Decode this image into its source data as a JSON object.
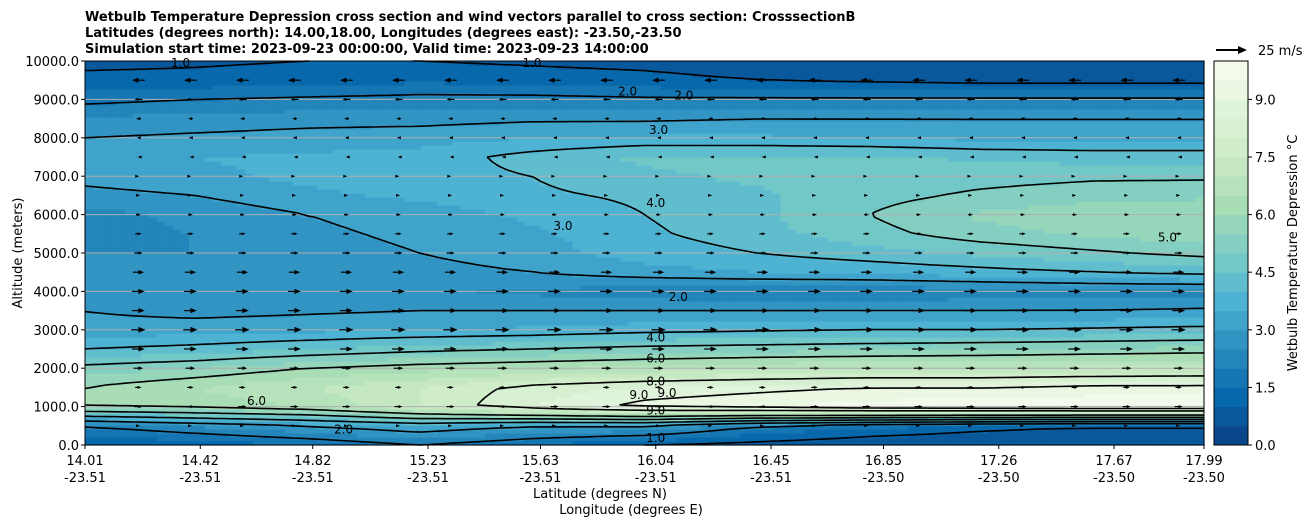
{
  "chart_data": {
    "type": "heatmap",
    "title_lines": [
      "Wetbulb Temperature Depression cross section and wind vectors parallel to cross section: CrosssectionB",
      "Latitudes (degrees north): 14.00,18.00, Longitudes (degrees east): -23.50,-23.50",
      "Simulation start time: 2023-09-23 00:00:00, Valid time: 2023-09-23 14:00:00"
    ],
    "ylabel": "Altitude (meters)",
    "xlabel": "Latitude (degrees N)",
    "xlabel2": "Longitude (degrees E)",
    "xlim": [
      14.01,
      17.99
    ],
    "ylim": [
      0,
      10000
    ],
    "yticks": [
      "0.0",
      "1000.0",
      "2000.0",
      "3000.0",
      "4000.0",
      "5000.0",
      "6000.0",
      "7000.0",
      "8000.0",
      "9000.0",
      "10000.0"
    ],
    "xticks": [
      {
        "lat": 14.01,
        "lat_label": "14.01",
        "lon_label": "-23.51"
      },
      {
        "lat": 14.42,
        "lat_label": "14.42",
        "lon_label": "-23.51"
      },
      {
        "lat": 14.82,
        "lat_label": "14.82",
        "lon_label": "-23.51"
      },
      {
        "lat": 15.23,
        "lat_label": "15.23",
        "lon_label": "-23.51"
      },
      {
        "lat": 15.63,
        "lat_label": "15.63",
        "lon_label": "-23.51"
      },
      {
        "lat": 16.04,
        "lat_label": "16.04",
        "lon_label": "-23.51"
      },
      {
        "lat": 16.45,
        "lat_label": "16.45",
        "lon_label": "-23.51"
      },
      {
        "lat": 16.85,
        "lat_label": "16.85",
        "lon_label": "-23.50"
      },
      {
        "lat": 17.26,
        "lat_label": "17.26",
        "lon_label": "-23.50"
      },
      {
        "lat": 17.67,
        "lat_label": "17.67",
        "lon_label": "-23.50"
      },
      {
        "lat": 17.99,
        "lat_label": "17.99",
        "lon_label": "-23.50"
      }
    ],
    "grid_lats": [
      14.0,
      14.4,
      14.8,
      15.2,
      15.6,
      16.0,
      16.4,
      16.8,
      17.2,
      17.6,
      18.0
    ],
    "grid_alts": [
      0,
      500,
      1000,
      1500,
      2000,
      2500,
      3000,
      3500,
      4000,
      4500,
      5000,
      5500,
      6000,
      6500,
      7000,
      7500,
      8000,
      8500,
      9000,
      9500,
      10000
    ],
    "values": [
      [
        1.0,
        1.2,
        1.5,
        2.0,
        1.5,
        1.0,
        0.8,
        0.6,
        0.5,
        0.5,
        0.5
      ],
      [
        2.0,
        2.5,
        3.0,
        3.5,
        3.0,
        3.0,
        2.0,
        1.5,
        1.2,
        1.0,
        1.0
      ],
      [
        6.0,
        6.2,
        6.5,
        7.5,
        8.5,
        9.2,
        9.5,
        9.8,
        9.9,
        10.0,
        10.0
      ],
      [
        6.0,
        6.5,
        7.0,
        7.5,
        8.2,
        8.6,
        8.8,
        9.0,
        9.0,
        9.2,
        9.2
      ],
      [
        5.2,
        5.5,
        6.0,
        6.3,
        6.5,
        6.7,
        6.9,
        7.0,
        7.0,
        7.1,
        7.2
      ],
      [
        4.0,
        4.2,
        4.5,
        4.8,
        5.0,
        5.2,
        5.3,
        5.4,
        5.5,
        5.6,
        5.7
      ],
      [
        3.2,
        3.3,
        3.4,
        3.5,
        3.6,
        3.8,
        3.9,
        4.0,
        4.0,
        4.1,
        4.2
      ],
      [
        3.0,
        2.8,
        2.9,
        3.0,
        3.0,
        3.0,
        3.0,
        3.0,
        3.0,
        3.0,
        3.1
      ],
      [
        2.6,
        2.5,
        2.5,
        2.5,
        2.4,
        2.2,
        2.1,
        2.1,
        2.2,
        2.3,
        2.3
      ],
      [
        2.6,
        2.5,
        2.7,
        2.8,
        3.0,
        3.3,
        3.5,
        3.6,
        3.8,
        4.0,
        4.2
      ],
      [
        2.5,
        2.5,
        2.8,
        3.0,
        3.3,
        3.7,
        4.0,
        4.3,
        4.6,
        4.9,
        5.2
      ],
      [
        2.4,
        2.5,
        2.9,
        3.1,
        3.4,
        3.9,
        4.3,
        4.8,
        5.3,
        5.6,
        5.8
      ],
      [
        2.3,
        2.6,
        3.0,
        3.2,
        3.6,
        4.0,
        4.4,
        5.0,
        5.6,
        5.9,
        6.0
      ],
      [
        2.8,
        3.0,
        3.4,
        3.6,
        3.9,
        4.1,
        4.4,
        4.8,
        5.1,
        5.3,
        5.4
      ],
      [
        3.2,
        3.4,
        3.6,
        3.8,
        4.0,
        4.4,
        4.6,
        4.8,
        4.8,
        4.9,
        4.9
      ],
      [
        3.3,
        3.5,
        3.6,
        3.7,
        4.2,
        4.6,
        4.6,
        4.6,
        4.4,
        4.3,
        4.3
      ],
      [
        3.0,
        3.1,
        3.2,
        3.3,
        3.5,
        3.6,
        3.6,
        3.5,
        3.4,
        3.4,
        3.4
      ],
      [
        2.6,
        2.7,
        2.8,
        2.8,
        2.9,
        2.9,
        3.0,
        3.0,
        3.0,
        3.0,
        3.0
      ],
      [
        1.8,
        2.0,
        2.1,
        2.2,
        2.2,
        2.1,
        2.1,
        2.1,
        2.1,
        2.1,
        2.1
      ],
      [
        1.2,
        1.2,
        1.3,
        1.4,
        1.3,
        1.2,
        1.0,
        0.9,
        0.8,
        0.8,
        0.8
      ],
      [
        0.8,
        0.9,
        1.0,
        1.0,
        0.9,
        0.8,
        0.6,
        0.5,
        0.5,
        0.5,
        0.5
      ]
    ],
    "contour_levels": [
      1,
      2,
      3,
      4,
      5,
      6,
      8,
      9
    ],
    "contour_labels": [
      {
        "text": "1.0",
        "lat": 14.35,
        "alt": 9950
      },
      {
        "text": "1.0",
        "lat": 15.6,
        "alt": 9950
      },
      {
        "text": "2.0",
        "lat": 15.94,
        "alt": 9200
      },
      {
        "text": "2.0",
        "lat": 16.14,
        "alt": 9100
      },
      {
        "text": "3.0",
        "lat": 16.05,
        "alt": 8200
      },
      {
        "text": "4.0",
        "lat": 16.04,
        "alt": 6300
      },
      {
        "text": "3.0",
        "lat": 15.71,
        "alt": 5700
      },
      {
        "text": "5.0",
        "lat": 17.86,
        "alt": 5400
      },
      {
        "text": "2.0",
        "lat": 16.12,
        "alt": 3850
      },
      {
        "text": "4.0",
        "lat": 16.04,
        "alt": 2800
      },
      {
        "text": "6.0",
        "lat": 16.04,
        "alt": 2250
      },
      {
        "text": "8.0",
        "lat": 16.04,
        "alt": 1650
      },
      {
        "text": "9.0",
        "lat": 15.98,
        "alt": 1300
      },
      {
        "text": "9.0",
        "lat": 16.08,
        "alt": 1350
      },
      {
        "text": "6.0",
        "lat": 14.62,
        "alt": 1150
      },
      {
        "text": "9.0",
        "lat": 16.04,
        "alt": 900
      },
      {
        "text": "2.0",
        "lat": 14.93,
        "alt": 400
      },
      {
        "text": "1.0",
        "lat": 16.04,
        "alt": 180
      }
    ],
    "colorbar": {
      "label": "Wetbulb Temperature Depression $^\\circ$C",
      "label_text": "Wetbulb Temperature Depression °C",
      "range": [
        0,
        10
      ],
      "step": 0.5,
      "ticks": [
        "0.0",
        "1.5",
        "3.0",
        "4.5",
        "6.0",
        "7.5",
        "9.0"
      ],
      "colormap": [
        "#084081",
        "#0868ac",
        "#2b8cbe",
        "#4eb3d3",
        "#7bccc4",
        "#a8ddb5",
        "#ccebc5",
        "#e0f3db",
        "#f7fcf0"
      ]
    },
    "wind": {
      "reference_label": "25 m/s",
      "reference_speed": 25,
      "alts": [
        500,
        1000,
        1500,
        2000,
        2500,
        3000,
        3500,
        4000,
        4500,
        5000,
        5500,
        6000,
        6500,
        7000,
        7500,
        8000,
        8500,
        9000,
        9500
      ],
      "u": [
        2,
        5,
        4,
        6,
        8,
        9,
        8,
        8,
        7,
        5,
        4,
        3,
        2,
        1,
        -1,
        -2,
        -3,
        -5,
        -8
      ],
      "lat_start": 14.2,
      "lat_step": 0.185
    }
  }
}
